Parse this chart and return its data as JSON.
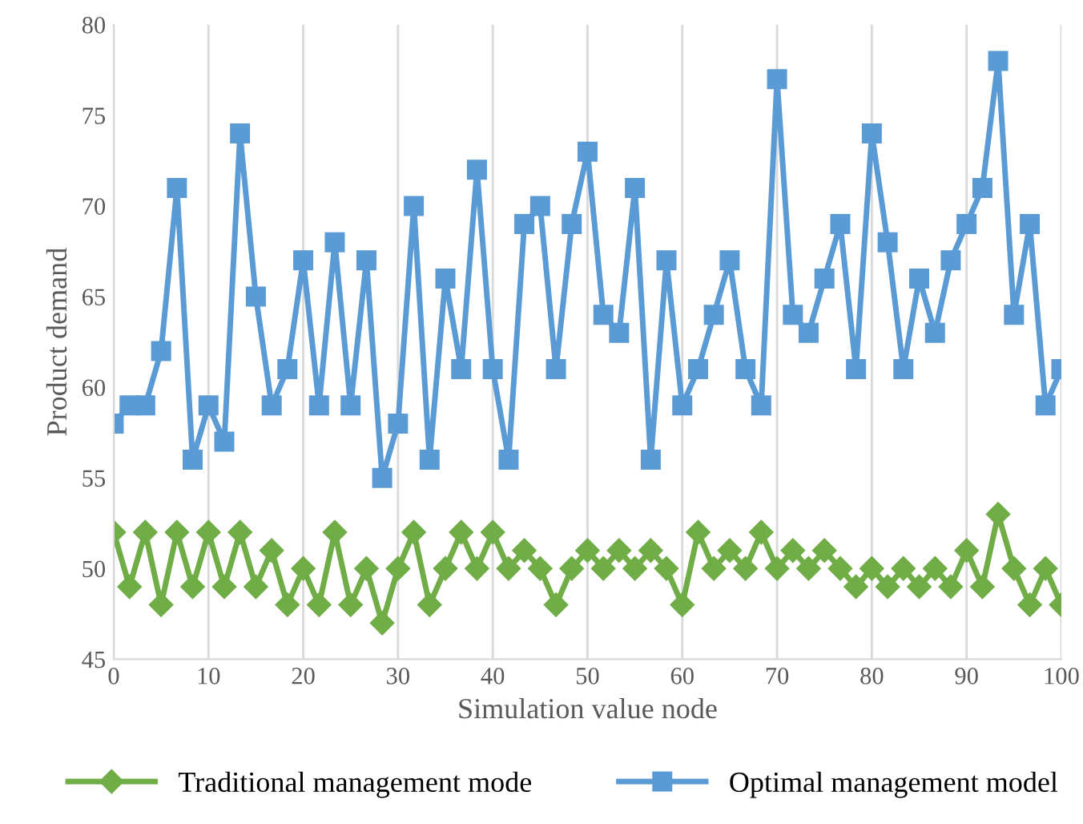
{
  "chart_data": {
    "type": "line",
    "xlabel": "Simulation value node",
    "ylabel": "Product demand",
    "x": [
      0,
      1.67,
      3.33,
      5,
      6.67,
      8.33,
      10,
      11.67,
      13.33,
      15,
      16.67,
      18.33,
      20,
      21.67,
      23.33,
      25,
      26.67,
      28.33,
      30,
      31.67,
      33.33,
      35,
      36.67,
      38.33,
      40,
      41.67,
      43.33,
      45,
      46.67,
      48.33,
      50,
      51.67,
      53.33,
      55,
      56.67,
      58.33,
      60,
      61.67,
      63.33,
      65,
      66.67,
      68.33,
      70,
      71.67,
      73.33,
      75,
      76.67,
      78.33,
      80,
      81.67,
      83.33,
      85,
      86.67,
      88.33,
      90,
      91.67,
      93.33,
      95,
      96.67,
      98.33,
      100
    ],
    "series": [
      {
        "name": "Traditional management mode",
        "color": "#70ad47",
        "marker": "diamond",
        "values": [
          52,
          49,
          52,
          48,
          52,
          49,
          52,
          49,
          52,
          49,
          51,
          48,
          50,
          48,
          52,
          48,
          50,
          47,
          50,
          52,
          48,
          50,
          52,
          50,
          52,
          50,
          51,
          50,
          48,
          50,
          51,
          50,
          51,
          50,
          51,
          50,
          48,
          52,
          50,
          51,
          50,
          52,
          50,
          51,
          50,
          51,
          50,
          49,
          50,
          49,
          50,
          49,
          50,
          49,
          51,
          49,
          53,
          50,
          48,
          50,
          48
        ]
      },
      {
        "name": "Optimal management model",
        "color": "#5b9bd5",
        "marker": "square",
        "values": [
          58,
          59,
          59,
          62,
          71,
          56,
          59,
          57,
          74,
          65,
          59,
          61,
          67,
          59,
          68,
          59,
          67,
          55,
          58,
          70,
          56,
          66,
          61,
          72,
          61,
          56,
          69,
          70,
          61,
          69,
          73,
          64,
          63,
          71,
          56,
          67,
          59,
          61,
          64,
          67,
          61,
          59,
          77,
          64,
          63,
          66,
          69,
          61,
          74,
          68,
          61,
          66,
          63,
          67,
          69,
          71,
          78,
          64,
          69,
          59,
          61
        ]
      }
    ],
    "xlim": [
      0,
      100
    ],
    "xticks": [
      0,
      10,
      20,
      30,
      40,
      50,
      60,
      70,
      80,
      90,
      100
    ],
    "ylim": [
      45,
      80
    ],
    "yticks": [
      45,
      50,
      55,
      60,
      65,
      70,
      75,
      80
    ],
    "grid": "x",
    "legend": "bottom",
    "line_style": "solid"
  }
}
